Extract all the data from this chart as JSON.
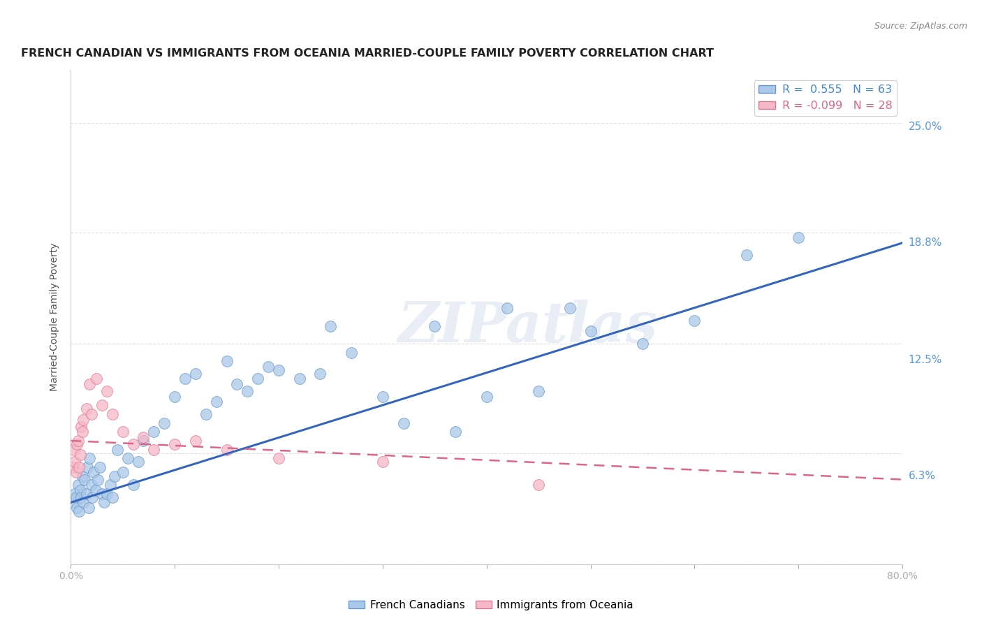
{
  "title": "FRENCH CANADIAN VS IMMIGRANTS FROM OCEANIA MARRIED-COUPLE FAMILY POVERTY CORRELATION CHART",
  "source": "Source: ZipAtlas.com",
  "ylabel": "Married-Couple Family Poverty",
  "ytick_labels": [
    "6.3%",
    "12.5%",
    "18.8%",
    "25.0%"
  ],
  "ytick_values": [
    6.3,
    12.5,
    18.8,
    25.0
  ],
  "legend_1_label": "French Canadians",
  "legend_2_label": "Immigrants from Oceania",
  "r1": "0.555",
  "n1": "63",
  "r2": "-0.099",
  "n2": "28",
  "blue_scatter_x": [
    0.2,
    0.4,
    0.5,
    0.6,
    0.7,
    0.8,
    0.9,
    1.0,
    1.1,
    1.2,
    1.3,
    1.5,
    1.6,
    1.7,
    1.8,
    2.0,
    2.1,
    2.2,
    2.4,
    2.6,
    2.8,
    3.0,
    3.2,
    3.5,
    3.8,
    4.0,
    4.2,
    4.5,
    5.0,
    5.5,
    6.0,
    6.5,
    7.0,
    8.0,
    9.0,
    10.0,
    11.0,
    12.0,
    13.0,
    14.0,
    15.0,
    16.0,
    17.0,
    18.0,
    19.0,
    20.0,
    22.0,
    24.0,
    25.0,
    27.0,
    30.0,
    32.0,
    35.0,
    37.0,
    40.0,
    42.0,
    45.0,
    48.0,
    50.0,
    55.0,
    60.0,
    65.0,
    70.0
  ],
  "blue_scatter_y": [
    3.5,
    4.0,
    3.8,
    3.2,
    4.5,
    3.0,
    4.2,
    3.8,
    5.0,
    3.5,
    4.8,
    4.0,
    5.5,
    3.2,
    6.0,
    4.5,
    3.8,
    5.2,
    4.2,
    4.8,
    5.5,
    4.0,
    3.5,
    4.0,
    4.5,
    3.8,
    5.0,
    6.5,
    5.2,
    6.0,
    4.5,
    5.8,
    7.0,
    7.5,
    8.0,
    9.5,
    10.5,
    10.8,
    8.5,
    9.2,
    11.5,
    10.2,
    9.8,
    10.5,
    11.2,
    11.0,
    10.5,
    10.8,
    13.5,
    12.0,
    9.5,
    8.0,
    13.5,
    7.5,
    9.5,
    14.5,
    9.8,
    14.5,
    13.2,
    12.5,
    13.8,
    17.5,
    18.5
  ],
  "pink_scatter_x": [
    0.2,
    0.3,
    0.4,
    0.5,
    0.6,
    0.7,
    0.8,
    0.9,
    1.0,
    1.1,
    1.2,
    1.5,
    1.8,
    2.0,
    2.5,
    3.0,
    3.5,
    4.0,
    5.0,
    6.0,
    7.0,
    8.0,
    10.0,
    12.0,
    15.0,
    20.0,
    30.0,
    45.0
  ],
  "pink_scatter_y": [
    5.5,
    6.5,
    5.8,
    5.2,
    6.8,
    7.0,
    5.5,
    6.2,
    7.8,
    7.5,
    8.2,
    8.8,
    10.2,
    8.5,
    10.5,
    9.0,
    9.8,
    8.5,
    7.5,
    6.8,
    7.2,
    6.5,
    6.8,
    7.0,
    6.5,
    6.0,
    5.8,
    4.5
  ],
  "blue_line_y_start": 3.5,
  "blue_line_y_end": 18.2,
  "pink_line_y_start": 7.0,
  "pink_line_y_end": 4.8,
  "xmin": 0,
  "xmax": 80,
  "ymin": 1.5,
  "ymax": 28.0,
  "blue_color": "#aac8e8",
  "blue_color_dark": "#6699cc",
  "pink_color": "#f5b8c8",
  "pink_color_dark": "#e07890",
  "blue_line_color": "#3366bb",
  "pink_line_color": "#dd6688",
  "watermark_text": "ZIPatlas",
  "grid_color": "#e0e0e0",
  "title_fontsize": 11.5,
  "axis_label_fontsize": 10,
  "tick_fontsize": 10
}
